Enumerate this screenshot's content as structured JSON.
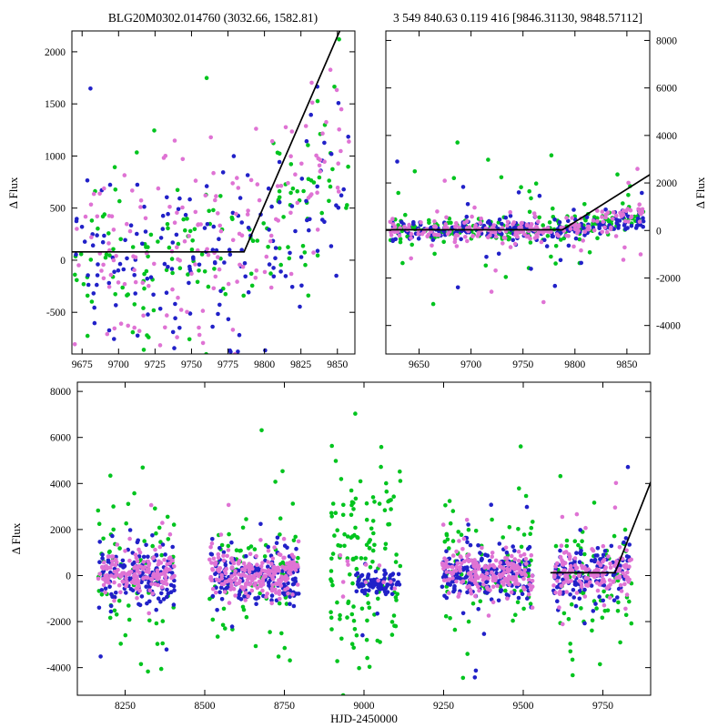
{
  "figure": {
    "background": "#ffffff"
  },
  "colors": {
    "green": "#00c41e",
    "blue": "#2121c8",
    "violet": "#df73d4",
    "model": "#000000",
    "axis": "#000000"
  },
  "chart_data": [
    {
      "type": "scatter",
      "title": "BLG20M0302.014760 (3032.66, 1582.81)",
      "xlim": [
        9668,
        9862
      ],
      "ylim": [
        -900,
        2200
      ],
      "xticks": [
        9675,
        9700,
        9725,
        9750,
        9775,
        9800,
        9825,
        9850
      ],
      "yticks": [
        -500,
        0,
        500,
        1000,
        1500,
        2000
      ],
      "ylabel": "Δ Flux",
      "yaxis_side": "left",
      "model_line": [
        [
          9668,
          80
        ],
        [
          9786,
          80
        ],
        [
          9864,
          2600
        ]
      ],
      "series": [
        {
          "name": "green",
          "seed": 101,
          "clusters": [
            {
              "x": [
                9670,
                9858
              ],
              "n": 150,
              "mean": 40,
              "sd": 430,
              "tail": 0.1,
              "tail_sd": 900,
              "trend_x": 9788,
              "trend_slope": 13
            }
          ]
        },
        {
          "name": "blue",
          "seed": 202,
          "clusters": [
            {
              "x": [
                9670,
                9858
              ],
              "n": 160,
              "mean": -20,
              "sd": 420,
              "tail": 0.07,
              "tail_sd": 800,
              "trend_x": 9788,
              "trend_slope": 10
            }
          ]
        },
        {
          "name": "violet",
          "seed": 303,
          "clusters": [
            {
              "x": [
                9670,
                9858
              ],
              "n": 165,
              "mean": 120,
              "sd": 440,
              "tail": 0.1,
              "tail_sd": 900,
              "trend_x": 9788,
              "trend_slope": 16
            }
          ]
        }
      ]
    },
    {
      "type": "scatter",
      "title": "3 549 840.63 0.119 416 [9846.31130, 9848.57112]",
      "xlim": [
        9618,
        9872
      ],
      "ylim": [
        -5200,
        8400
      ],
      "xticks": [
        9650,
        9700,
        9750,
        9800,
        9850
      ],
      "yticks": [
        -4000,
        -2000,
        0,
        2000,
        4000,
        6000,
        8000
      ],
      "ylabel": "Δ Flux",
      "yaxis_side": "right",
      "model_line": [
        [
          9618,
          30
        ],
        [
          9788,
          30
        ],
        [
          9874,
          2400
        ]
      ],
      "series": [
        {
          "name": "green",
          "seed": 404,
          "clusters": [
            {
              "x": [
                9622,
                9866
              ],
              "n": 215,
              "mean": 0,
              "sd": 260,
              "tail": 0.13,
              "tail_sd": 2300,
              "trend_x": 9790,
              "trend_slope": 9
            }
          ]
        },
        {
          "name": "blue",
          "seed": 505,
          "clusters": [
            {
              "x": [
                9622,
                9866
              ],
              "n": 225,
              "mean": 0,
              "sd": 240,
              "tail": 0.08,
              "tail_sd": 1500,
              "trend_x": 9790,
              "trend_slope": 7
            }
          ]
        },
        {
          "name": "violet",
          "seed": 606,
          "clusters": [
            {
              "x": [
                9622,
                9866
              ],
              "n": 230,
              "mean": 30,
              "sd": 250,
              "tail": 0.08,
              "tail_sd": 1800,
              "trend_x": 9790,
              "trend_slope": 10
            }
          ]
        }
      ]
    },
    {
      "type": "scatter",
      "title": "",
      "xlabel": "HJD-2450000",
      "xlim": [
        8100,
        9900
      ],
      "ylim": [
        -5200,
        8400
      ],
      "xticks": [
        8250,
        8500,
        8750,
        9000,
        9250,
        9500,
        9750
      ],
      "yticks": [
        -4000,
        -2000,
        0,
        2000,
        4000,
        6000,
        8000
      ],
      "ylabel": "Δ Flux",
      "yaxis_side": "left",
      "model_line": [
        [
          9585,
          120
        ],
        [
          9788,
          120
        ],
        [
          9910,
          4400
        ]
      ],
      "series": [
        {
          "name": "green",
          "seed": 707,
          "clusters": [
            {
              "x": [
                8165,
                8405
              ],
              "n": 75,
              "mean": 0,
              "sd": 1500,
              "tail": 0.12,
              "tail_sd": 3000
            },
            {
              "x": [
                8515,
                8795
              ],
              "n": 85,
              "mean": 0,
              "sd": 1500,
              "tail": 0.12,
              "tail_sd": 3000
            },
            {
              "x": [
                8895,
                9115
              ],
              "n": 135,
              "mean": 400,
              "sd": 2300,
              "tail": 0.12,
              "tail_sd": 3200
            },
            {
              "x": [
                9245,
                9530
              ],
              "n": 85,
              "mean": 0,
              "sd": 1400,
              "tail": 0.12,
              "tail_sd": 3000
            },
            {
              "x": [
                9595,
                9840
              ],
              "n": 75,
              "mean": 0,
              "sd": 1600,
              "tail": 0.12,
              "tail_sd": 3000,
              "trend_x": 9790,
              "trend_slope": 6
            }
          ]
        },
        {
          "name": "blue",
          "seed": 808,
          "clusters": [
            {
              "x": [
                8165,
                8405
              ],
              "n": 150,
              "mean": 0,
              "sd": 600,
              "tail": 0.07,
              "tail_sd": 2200
            },
            {
              "x": [
                8515,
                8795
              ],
              "n": 175,
              "mean": -100,
              "sd": 650,
              "tail": 0.07,
              "tail_sd": 2200
            },
            {
              "x": [
                8975,
                9115
              ],
              "n": 85,
              "mean": -350,
              "sd": 260,
              "tail": 0.03,
              "tail_sd": 1200
            },
            {
              "x": [
                9245,
                9530
              ],
              "n": 175,
              "mean": 0,
              "sd": 600,
              "tail": 0.07,
              "tail_sd": 2200
            },
            {
              "x": [
                9595,
                9840
              ],
              "n": 135,
              "mean": 0,
              "sd": 650,
              "tail": 0.07,
              "tail_sd": 2200,
              "trend_x": 9790,
              "trend_slope": 4
            }
          ]
        },
        {
          "name": "violet",
          "seed": 909,
          "clusters": [
            {
              "x": [
                8165,
                8405
              ],
              "n": 160,
              "mean": 100,
              "sd": 450,
              "tail": 0.05,
              "tail_sd": 1600
            },
            {
              "x": [
                8515,
                8795
              ],
              "n": 210,
              "mean": 100,
              "sd": 500,
              "tail": 0.05,
              "tail_sd": 1600
            },
            {
              "x": [
                8900,
                9100
              ],
              "n": 12,
              "mean": 0,
              "sd": 500,
              "tail": 0.05,
              "tail_sd": 1500
            },
            {
              "x": [
                9245,
                9530
              ],
              "n": 200,
              "mean": 100,
              "sd": 480,
              "tail": 0.05,
              "tail_sd": 1600
            },
            {
              "x": [
                9595,
                9840
              ],
              "n": 150,
              "mean": 100,
              "sd": 500,
              "tail": 0.05,
              "tail_sd": 1600,
              "trend_x": 9790,
              "trend_slope": 5
            }
          ]
        }
      ]
    }
  ]
}
